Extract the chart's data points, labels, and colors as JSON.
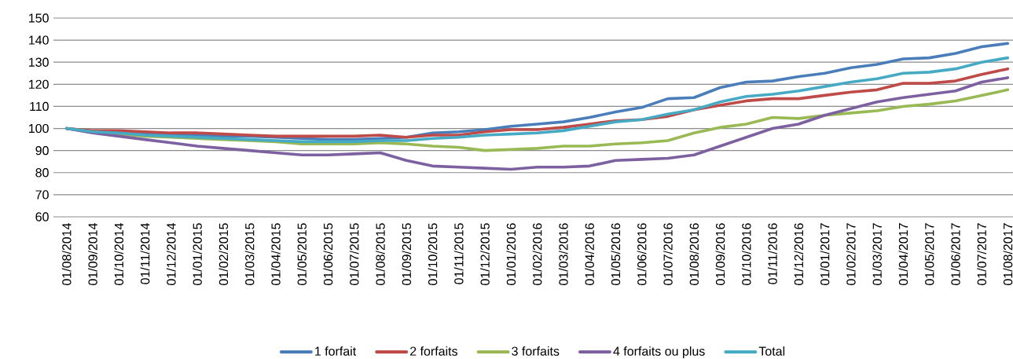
{
  "chart_data": {
    "type": "line",
    "categories": [
      "01/08/2014",
      "01/09/2014",
      "01/10/2014",
      "01/11/2014",
      "01/12/2014",
      "01/01/2015",
      "01/02/2015",
      "01/03/2015",
      "01/04/2015",
      "01/05/2015",
      "01/06/2015",
      "01/07/2015",
      "01/08/2015",
      "01/09/2015",
      "01/10/2015",
      "01/11/2015",
      "01/12/2015",
      "01/01/2016",
      "01/02/2016",
      "01/03/2016",
      "01/04/2016",
      "01/05/2016",
      "01/06/2016",
      "01/07/2016",
      "01/08/2016",
      "01/09/2016",
      "01/10/2016",
      "01/11/2016",
      "01/12/2016",
      "01/01/2017",
      "01/02/2017",
      "01/03/2017",
      "01/04/2017",
      "01/05/2017",
      "01/06/2017",
      "01/07/2017",
      "01/08/2017"
    ],
    "series": [
      {
        "name": "1 forfait",
        "color": "#4a7ebb",
        "values": [
          100,
          98.5,
          98.5,
          98,
          97.5,
          97,
          96.5,
          96.5,
          96,
          95.5,
          95,
          95,
          95.5,
          96,
          98,
          98.5,
          99.5,
          101,
          102,
          103,
          105,
          107.5,
          109.5,
          113.5,
          114,
          118.5,
          121,
          121.5,
          123.5,
          125,
          127.5,
          129,
          131.5,
          132,
          134,
          137,
          138.5
        ]
      },
      {
        "name": "2 forfaits",
        "color": "#be4b48",
        "values": [
          100,
          99,
          99,
          98.5,
          98,
          98,
          97.5,
          97,
          96.5,
          96.5,
          96.5,
          96.5,
          97,
          96,
          97,
          97,
          98.5,
          99.5,
          99.5,
          100.5,
          102,
          103.5,
          104,
          105.5,
          108.5,
          110.5,
          112.5,
          113.5,
          113.5,
          115,
          116.5,
          117.5,
          120.5,
          120.5,
          121.5,
          124.5,
          127
        ]
      },
      {
        "name": "3 forfaits",
        "color": "#98b954",
        "values": [
          100,
          98.5,
          97.5,
          96.5,
          96,
          95.5,
          95,
          94.5,
          94,
          93,
          93,
          93,
          93.5,
          93,
          92,
          91.5,
          90,
          90.5,
          91,
          92,
          92,
          93,
          93.5,
          94.5,
          98,
          100.5,
          102,
          105,
          104.5,
          106,
          107,
          108,
          110,
          111,
          112.5,
          115,
          117.5
        ]
      },
      {
        "name": "4 forfaits ou plus",
        "color": "#7d60a0",
        "values": [
          100,
          98,
          96.5,
          95,
          93.5,
          92,
          91,
          90,
          89,
          88,
          88,
          88.5,
          89,
          85.5,
          83,
          82.5,
          82,
          81.5,
          82.5,
          82.5,
          83,
          85.5,
          86,
          86.5,
          88,
          92,
          96,
          100,
          102,
          106,
          109,
          112,
          114,
          115.5,
          117,
          121,
          123
        ]
      },
      {
        "name": "Total",
        "color": "#46aac5",
        "values": [
          100,
          98.5,
          98,
          97,
          96.5,
          96,
          95.5,
          95,
          94.5,
          94,
          94,
          94,
          94.5,
          94.5,
          95.5,
          96,
          97,
          97.5,
          98,
          99,
          101,
          103,
          104,
          106.5,
          108.5,
          112,
          114.5,
          115.5,
          117,
          119,
          121,
          122.5,
          125,
          125.5,
          127,
          130,
          132
        ]
      }
    ],
    "ylim": [
      60,
      150
    ],
    "yticks": [
      60,
      70,
      80,
      90,
      100,
      110,
      120,
      130,
      140,
      150
    ],
    "grid": "y",
    "legend": "bottom",
    "marker": "none",
    "line_style": "solid"
  }
}
